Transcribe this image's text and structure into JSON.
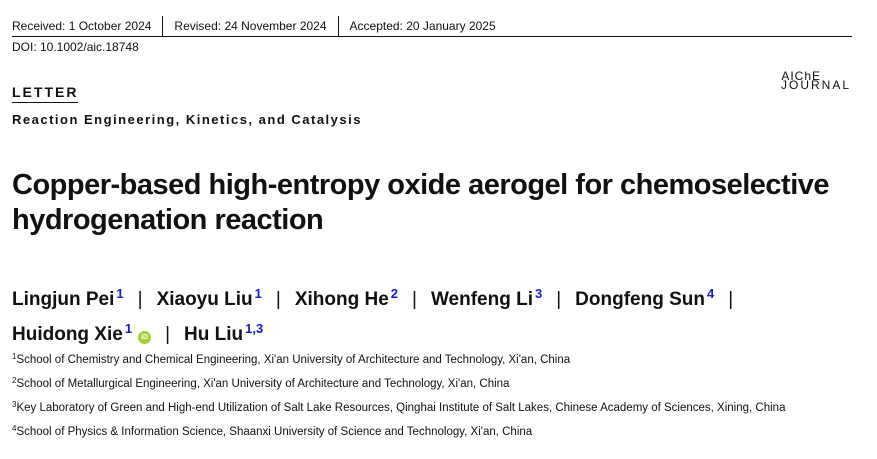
{
  "dates": {
    "received": "Received: 1 October 2024",
    "revised": "Revised: 24 November 2024",
    "accepted": "Accepted: 20 January 2025"
  },
  "doi": "DOI: 10.1002/aic.18748",
  "journal_logo": {
    "line1": "AIChE",
    "line2": "JOURNAL"
  },
  "article_type": "LETTER",
  "section": "Reaction Engineering, Kinetics, and Catalysis",
  "title": "Copper-based high-entropy oxide aerogel for chemoselective hydrogenation reaction",
  "authors": [
    {
      "name": "Lingjun Pei",
      "aff": "1"
    },
    {
      "name": "Xiaoyu Liu",
      "aff": "1"
    },
    {
      "name": "Xihong He",
      "aff": "2"
    },
    {
      "name": "Wenfeng Li",
      "aff": "3"
    },
    {
      "name": "Dongfeng Sun",
      "aff": "4"
    },
    {
      "name": "Huidong Xie",
      "aff": "1",
      "orcid": "iD"
    },
    {
      "name": "Hu Liu",
      "aff": "1,3"
    }
  ],
  "affiliations": [
    {
      "num": "1",
      "text": "School of Chemistry and Chemical Engineering, Xi'an University of Architecture and Technology, Xi'an, China"
    },
    {
      "num": "2",
      "text": "School of Metallurgical Engineering, Xi'an University of Architecture and Technology, Xi'an, China"
    },
    {
      "num": "3",
      "text": "Key Laboratory of Green and High-end Utilization of Salt Lake Resources, Qinghai Institute of Salt Lakes, Chinese Academy of Sciences, Xining, China"
    },
    {
      "num": "4",
      "text": "School of Physics & Information Science, Shaanxi University of Science and Technology, Xi'an, China"
    }
  ],
  "colors": {
    "affiliation_link": "#1a1ac8",
    "orcid": "#a6ce39"
  }
}
